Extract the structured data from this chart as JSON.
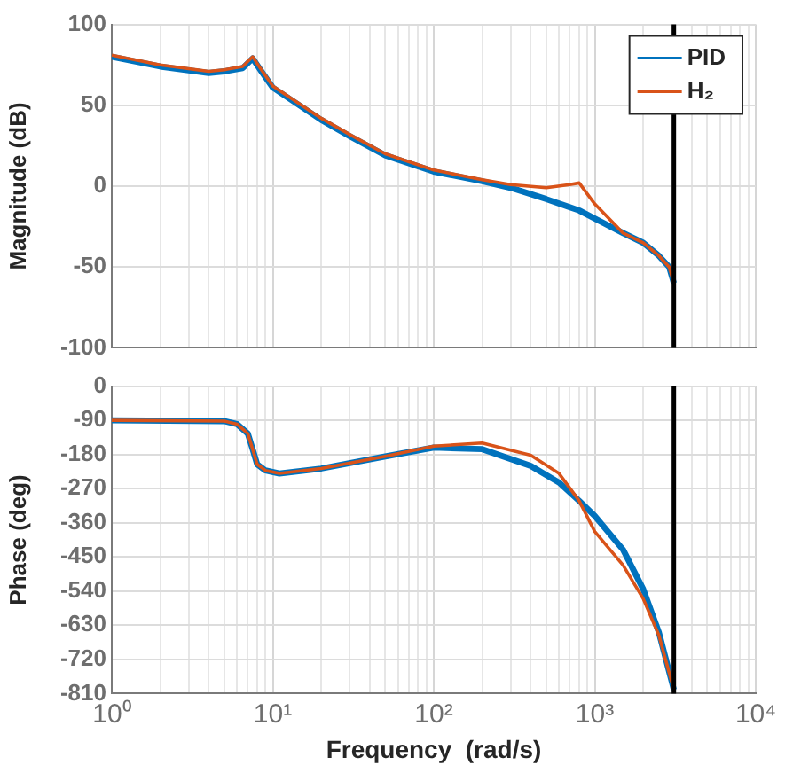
{
  "chart_data": [
    {
      "type": "line",
      "ylabel": "Magnitude (dB)",
      "log": "x",
      "grid": true,
      "legend": "top right",
      "tick_labels": "y",
      "xlim": [
        1,
        10000
      ],
      "ylim": [
        -100,
        100
      ],
      "yticks": [
        -100,
        -50,
        0,
        50,
        100
      ],
      "xticks": [
        {
          "value": 1,
          "label": null
        },
        {
          "value": 2,
          "label": null
        },
        {
          "value": 3,
          "label": null
        },
        {
          "value": 4,
          "label": null
        },
        {
          "value": 5,
          "label": null
        },
        {
          "value": 6,
          "label": null
        },
        {
          "value": 7,
          "label": null
        },
        {
          "value": 8,
          "label": null
        },
        {
          "value": 9,
          "label": null
        },
        {
          "value": 10,
          "label": null
        },
        {
          "value": 20,
          "label": null
        },
        {
          "value": 30,
          "label": null
        },
        {
          "value": 40,
          "label": null
        },
        {
          "value": 50,
          "label": null
        },
        {
          "value": 60,
          "label": null
        },
        {
          "value": 70,
          "label": null
        },
        {
          "value": 80,
          "label": null
        },
        {
          "value": 90,
          "label": null
        },
        {
          "value": 100,
          "label": null
        },
        {
          "value": 200,
          "label": null
        },
        {
          "value": 300,
          "label": null
        },
        {
          "value": 400,
          "label": null
        },
        {
          "value": 500,
          "label": null
        },
        {
          "value": 600,
          "label": null
        },
        {
          "value": 700,
          "label": null
        },
        {
          "value": 800,
          "label": null
        },
        {
          "value": 900,
          "label": null
        },
        {
          "value": 1000,
          "label": null
        },
        {
          "value": 2000,
          "label": null
        },
        {
          "value": 3000,
          "label": null
        },
        {
          "value": 4000,
          "label": null
        },
        {
          "value": 5000,
          "label": null
        },
        {
          "value": 6000,
          "label": null
        },
        {
          "value": 7000,
          "label": null
        },
        {
          "value": 8000,
          "label": null
        },
        {
          "value": 9000,
          "label": null
        },
        {
          "value": 10000,
          "label": null
        }
      ],
      "x": [
        1,
        2,
        4,
        5,
        6.5,
        7.5,
        8.5,
        10,
        20,
        30,
        50,
        100,
        200,
        300,
        500,
        700,
        800,
        1000,
        1500,
        2000,
        2500,
        2900,
        3100
      ],
      "series": [
        {
          "name": "PID",
          "color": "#0072bd",
          "values": [
            80,
            74,
            70,
            71,
            73,
            79,
            71,
            61,
            41,
            31,
            19,
            9,
            3,
            -1,
            -8,
            -13,
            -15,
            -20,
            -29,
            -35,
            -43,
            -50,
            -60
          ]
        },
        {
          "name": "H₂",
          "color": "#d95319",
          "values": [
            81,
            75,
            71,
            72,
            74,
            80,
            72,
            62,
            42,
            32,
            20,
            10,
            4,
            1,
            -1,
            1,
            2,
            -11,
            -29,
            -35,
            -43,
            -50,
            -60
          ]
        }
      ],
      "ref_lines": [
        {
          "axis": "x",
          "value": 3100,
          "color": "#000000"
        }
      ]
    },
    {
      "type": "line",
      "xlabel": "Frequency  (rad/s)",
      "ylabel": "Phase (deg)",
      "log": "x",
      "grid": true,
      "xlim": [
        1,
        10000
      ],
      "ylim": [
        -810,
        0
      ],
      "yticks": [
        -810,
        -720,
        -630,
        -540,
        -450,
        -360,
        -270,
        -180,
        -90,
        0
      ],
      "xticks": [
        {
          "value": 1,
          "label": "10⁰"
        },
        {
          "value": 2,
          "label": null
        },
        {
          "value": 3,
          "label": null
        },
        {
          "value": 4,
          "label": null
        },
        {
          "value": 5,
          "label": null
        },
        {
          "value": 6,
          "label": null
        },
        {
          "value": 7,
          "label": null
        },
        {
          "value": 8,
          "label": null
        },
        {
          "value": 9,
          "label": null
        },
        {
          "value": 10,
          "label": "10¹"
        },
        {
          "value": 20,
          "label": null
        },
        {
          "value": 30,
          "label": null
        },
        {
          "value": 40,
          "label": null
        },
        {
          "value": 50,
          "label": null
        },
        {
          "value": 60,
          "label": null
        },
        {
          "value": 70,
          "label": null
        },
        {
          "value": 80,
          "label": null
        },
        {
          "value": 90,
          "label": null
        },
        {
          "value": 100,
          "label": "10²"
        },
        {
          "value": 200,
          "label": null
        },
        {
          "value": 300,
          "label": null
        },
        {
          "value": 400,
          "label": null
        },
        {
          "value": 500,
          "label": null
        },
        {
          "value": 600,
          "label": null
        },
        {
          "value": 700,
          "label": null
        },
        {
          "value": 800,
          "label": null
        },
        {
          "value": 900,
          "label": null
        },
        {
          "value": 1000,
          "label": "10³"
        },
        {
          "value": 2000,
          "label": null
        },
        {
          "value": 3000,
          "label": null
        },
        {
          "value": 4000,
          "label": null
        },
        {
          "value": 5000,
          "label": null
        },
        {
          "value": 6000,
          "label": null
        },
        {
          "value": 7000,
          "label": null
        },
        {
          "value": 8000,
          "label": null
        },
        {
          "value": 9000,
          "label": null
        },
        {
          "value": 10000,
          "label": "10⁴"
        }
      ],
      "x": [
        1,
        5,
        6,
        7,
        7.5,
        8,
        9,
        11,
        20,
        50,
        100,
        200,
        400,
        600,
        800,
        1000,
        1500,
        2000,
        2500,
        3100
      ],
      "series": [
        {
          "color": "#0072bd",
          "values": [
            -90,
            -92,
            -100,
            -125,
            -166,
            -206,
            -222,
            -230,
            -217,
            -185,
            -162,
            -166,
            -210,
            -254,
            -302,
            -342,
            -431,
            -535,
            -648,
            -800
          ]
        },
        {
          "color": "#d95319",
          "values": [
            -90,
            -92,
            -100,
            -125,
            -166,
            -206,
            -222,
            -230,
            -217,
            -185,
            -158,
            -150,
            -182,
            -230,
            -302,
            -383,
            -472,
            -560,
            -656,
            -800
          ]
        }
      ],
      "ref_lines": [
        {
          "axis": "x",
          "value": 3100,
          "color": "#000000"
        }
      ]
    }
  ]
}
